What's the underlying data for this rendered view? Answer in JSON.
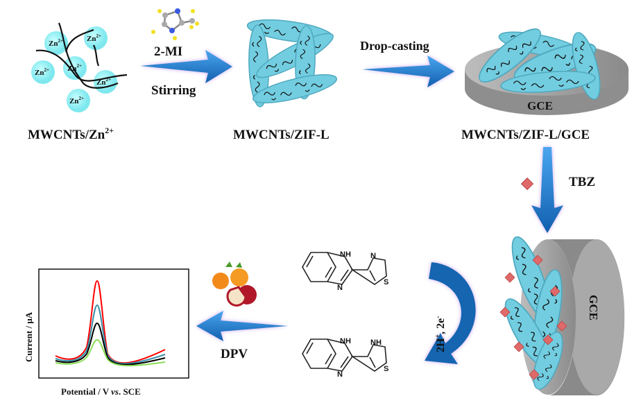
{
  "labels": {
    "step1": "MWCNTs/Zn",
    "step1_sup": "2+",
    "step2": "MWCNTs/ZIF-L",
    "step3": "MWCNTs/ZIF-L/GCE",
    "zn_ion": "Zn",
    "zn_sup": "2+",
    "reagent": "2-MI",
    "stirring": "Stirring",
    "drop_casting": "Drop-casting",
    "gce": "GCE",
    "tbz": "TBZ",
    "redox": "2H",
    "redox_sup1": "+",
    "redox_mid": ", 2e",
    "redox_sup2": "-",
    "dpv": "DPV",
    "plot_ylabel": "Current / μA",
    "plot_xlabel_a": "Potential / V ",
    "plot_xlabel_vs": "vs",
    "plot_xlabel_b": ". SCE",
    "atom_nh": "NH",
    "atom_n": "N",
    "atom_s": "S"
  },
  "colors": {
    "arrow": "#1f7fd0",
    "arrow_glow": "#c9a6f0",
    "zn_ion": "#8ff0f0",
    "zif": "#72cde0",
    "gce": "#9c9c9c",
    "tbz_cube": "#e06a6a",
    "curve_red": "#ff0000",
    "curve_teal": "#3a8fa8",
    "curve_black": "#000000",
    "curve_green": "#88dd55"
  }
}
